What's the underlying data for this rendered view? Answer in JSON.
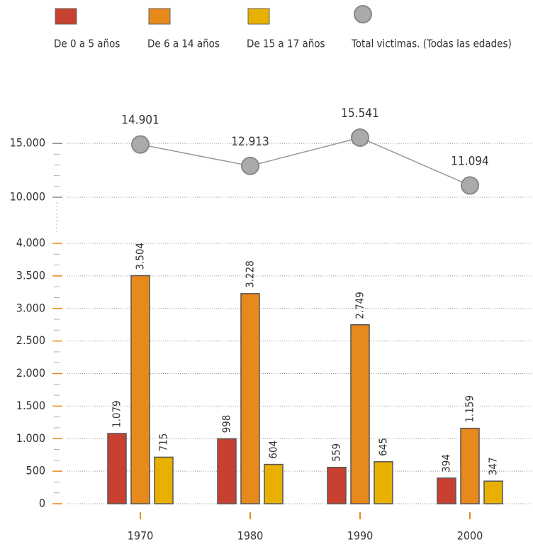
{
  "chart_data": [
    {
      "type": "bar",
      "categories": [
        "1970",
        "1980",
        "1990",
        "2000"
      ],
      "series": [
        {
          "name": "De 0 a 5 años",
          "color": "#c8402f",
          "values": [
            1079,
            998,
            559,
            394
          ],
          "value_labels": [
            "1.079",
            "998",
            "559",
            "394"
          ]
        },
        {
          "name": "De 6 a 14 años",
          "color": "#e8891c",
          "values": [
            3504,
            3228,
            2749,
            1159
          ],
          "value_labels": [
            "3.504",
            "3.228",
            "2.749",
            "1.159"
          ]
        },
        {
          "name": "De 15 a 17 años",
          "color": "#e8b000",
          "values": [
            715,
            604,
            645,
            347
          ],
          "value_labels": [
            "715",
            "604",
            "645",
            "347"
          ]
        }
      ],
      "ylim": [
        0,
        4000
      ],
      "yticks": [
        0,
        500,
        {
          "value": 1000,
          "label": "1.000"
        },
        {
          "value": 1500,
          "label": "1.500"
        },
        {
          "value": 2000,
          "label": "2.000"
        },
        {
          "value": 2500,
          "label": "2.500"
        },
        {
          "value": 3000,
          "label": "3.000"
        },
        {
          "value": 3500,
          "label": "3.500"
        },
        {
          "value": 4000,
          "label": "4.000"
        }
      ],
      "grid": true
    },
    {
      "type": "line",
      "categories": [
        "1970",
        "1980",
        "1990",
        "2000"
      ],
      "series": [
        {
          "name": "Total victimas. (Todas las edades)",
          "color": "#aaaaaa",
          "values": [
            14901,
            12913,
            15541,
            11094
          ],
          "value_labels": [
            "14.901",
            "12.913",
            "15.541",
            "11.094"
          ]
        }
      ],
      "ylim": [
        10000,
        16000
      ],
      "yticks": [
        {
          "value": 10000,
          "label": "10.000"
        },
        {
          "value": 15000,
          "label": "15.000"
        }
      ],
      "grid": true
    }
  ]
}
